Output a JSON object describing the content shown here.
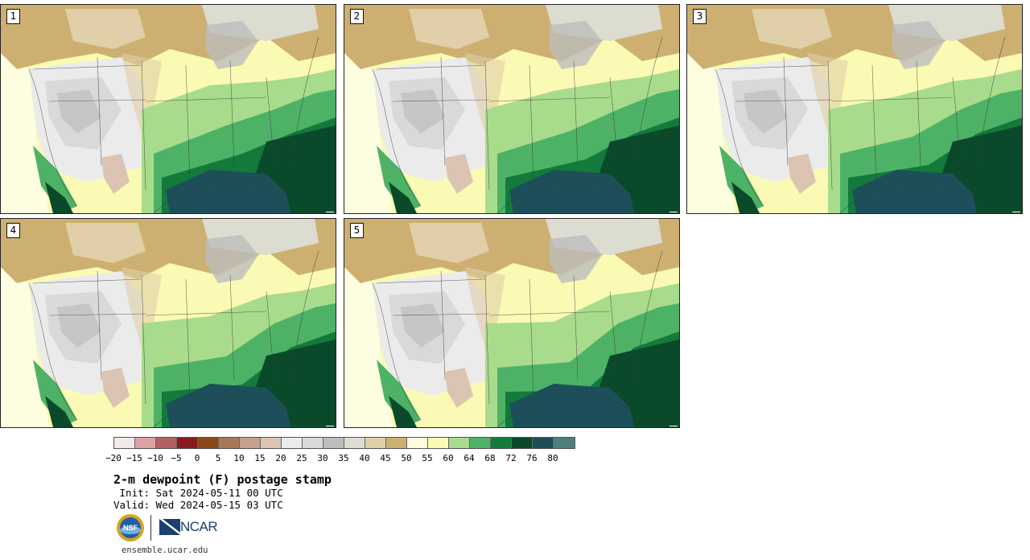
{
  "figure": {
    "title": "2-m dewpoint (F) postage stamp",
    "init": " Init: Sat 2024-05-11 00 UTC",
    "valid": "Valid: Wed 2024-05-15 03 UTC",
    "url": "ensemble.ucar.edu",
    "logos": {
      "nsf": "NSF",
      "ncar": "NCAR"
    }
  },
  "panels": [
    {
      "label": "1"
    },
    {
      "label": "2"
    },
    {
      "label": "3"
    },
    {
      "label": "4"
    },
    {
      "label": "5"
    }
  ],
  "colorbar": {
    "units": "F",
    "tick_labels": [
      "−20",
      "−15",
      "−10",
      "−5",
      "0",
      "5",
      "10",
      "15",
      "20",
      "25",
      "30",
      "35",
      "40",
      "45",
      "50",
      "55",
      "60",
      "64",
      "68",
      "72",
      "76",
      "80"
    ],
    "colors": [
      "#f5e8e8",
      "#d9a3a6",
      "#b35f63",
      "#8b1a1f",
      "#8a4a17",
      "#a87756",
      "#c6a08a",
      "#dcc4b2",
      "#ebebeb",
      "#d9d9d9",
      "#bdbdbd",
      "#dcdcd0",
      "#e0cfa8",
      "#cdb071",
      "#fdfde0",
      "#fafab4",
      "#a8dc8c",
      "#4eb266",
      "#137a3c",
      "#0a4a2b",
      "#1d4f5a",
      "#4e7f7e"
    ]
  },
  "chart_data": {
    "type": "heatmap",
    "title": "2-m dewpoint (F) postage stamp",
    "members": [
      "1",
      "2",
      "3",
      "4",
      "5"
    ],
    "colorbar_bounds": [
      -20,
      -15,
      -10,
      -5,
      0,
      5,
      10,
      15,
      20,
      25,
      30,
      35,
      40,
      45,
      50,
      55,
      60,
      64,
      68,
      72,
      76,
      80
    ]
  }
}
